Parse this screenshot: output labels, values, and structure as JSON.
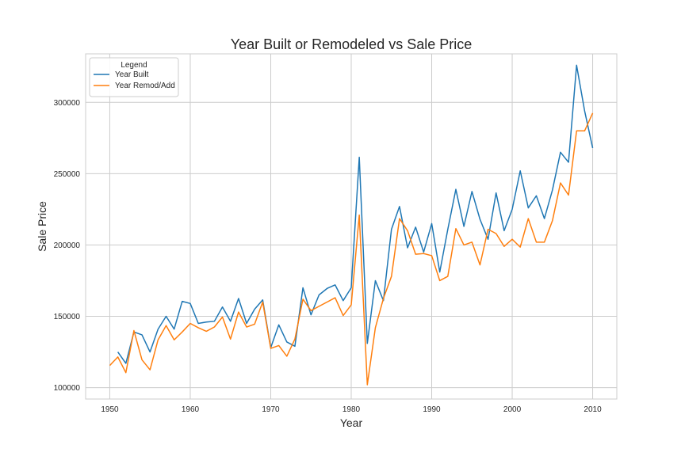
{
  "chart_data": {
    "type": "line",
    "title": "Year Built or Remodeled vs Sale Price",
    "xlabel": "Year",
    "ylabel": "Sale Price",
    "xlim": [
      1947,
      2013
    ],
    "ylim": [
      92000,
      334000
    ],
    "xticks": [
      1950,
      1960,
      1970,
      1980,
      1990,
      2000,
      2010
    ],
    "yticks": [
      100000,
      150000,
      200000,
      250000,
      300000
    ],
    "grid": true,
    "legend": {
      "title": "Legend",
      "placement": "top-left"
    },
    "colors": {
      "year_built": "#1f77b4",
      "year_remod": "#ff7f0e",
      "grid": "#cccccc",
      "axes_edge": "#cccccc"
    },
    "series": [
      {
        "name": "Year Built",
        "x": [
          1951,
          1952,
          1953,
          1954,
          1955,
          1956,
          1957,
          1958,
          1959,
          1960,
          1961,
          1962,
          1963,
          1964,
          1965,
          1966,
          1967,
          1968,
          1969,
          1970,
          1971,
          1972,
          1973,
          1974,
          1975,
          1976,
          1977,
          1978,
          1979,
          1980,
          1981,
          1982,
          1983,
          1984,
          1985,
          1986,
          1987,
          1988,
          1989,
          1990,
          1991,
          1992,
          1993,
          1994,
          1995,
          1996,
          1997,
          1998,
          1999,
          2000,
          2001,
          2002,
          2003,
          2004,
          2005,
          2006,
          2007,
          2008,
          2009,
          2010
        ],
        "y": [
          125000,
          117000,
          139000,
          137000,
          125000,
          141000,
          150000,
          141000,
          160500,
          159000,
          145000,
          146000,
          146500,
          156500,
          146500,
          162500,
          145000,
          155000,
          161500,
          128000,
          144000,
          132000,
          129000,
          170000,
          151000,
          165000,
          169500,
          172000,
          161000,
          170000,
          261500,
          131000,
          175000,
          161000,
          211000,
          227000,
          198000,
          212500,
          195000,
          215000,
          181000,
          211000,
          239000,
          213000,
          237500,
          218000,
          204000,
          236500,
          210000,
          225000,
          252000,
          226000,
          234500,
          218500,
          238500,
          265000,
          258000,
          326000,
          294000,
          268000
        ]
      },
      {
        "name": "Year Remod/Add",
        "x": [
          1950,
          1951,
          1952,
          1953,
          1954,
          1955,
          1956,
          1957,
          1958,
          1959,
          1960,
          1961,
          1962,
          1963,
          1964,
          1965,
          1966,
          1967,
          1968,
          1969,
          1970,
          1971,
          1972,
          1973,
          1974,
          1975,
          1976,
          1977,
          1978,
          1979,
          1980,
          1981,
          1982,
          1983,
          1984,
          1985,
          1986,
          1987,
          1988,
          1989,
          1990,
          1991,
          1992,
          1993,
          1994,
          1995,
          1996,
          1997,
          1998,
          1999,
          2000,
          2001,
          2002,
          2003,
          2004,
          2005,
          2006,
          2007,
          2008,
          2009,
          2010
        ],
        "y": [
          115500,
          121500,
          110500,
          140000,
          119500,
          112500,
          133500,
          143500,
          133500,
          139000,
          145000,
          142000,
          139500,
          142500,
          149500,
          134000,
          153000,
          142500,
          144500,
          160000,
          127500,
          129500,
          122000,
          134000,
          162000,
          154000,
          157000,
          160000,
          163000,
          150500,
          158000,
          221000,
          102000,
          142000,
          162500,
          178000,
          218500,
          210000,
          193500,
          194000,
          192500,
          175000,
          178000,
          211500,
          200000,
          202000,
          186000,
          211000,
          208000,
          199000,
          204000,
          198500,
          218500,
          202000,
          202000,
          217000,
          243500,
          235000,
          280000,
          280000,
          292500
        ]
      }
    ]
  }
}
